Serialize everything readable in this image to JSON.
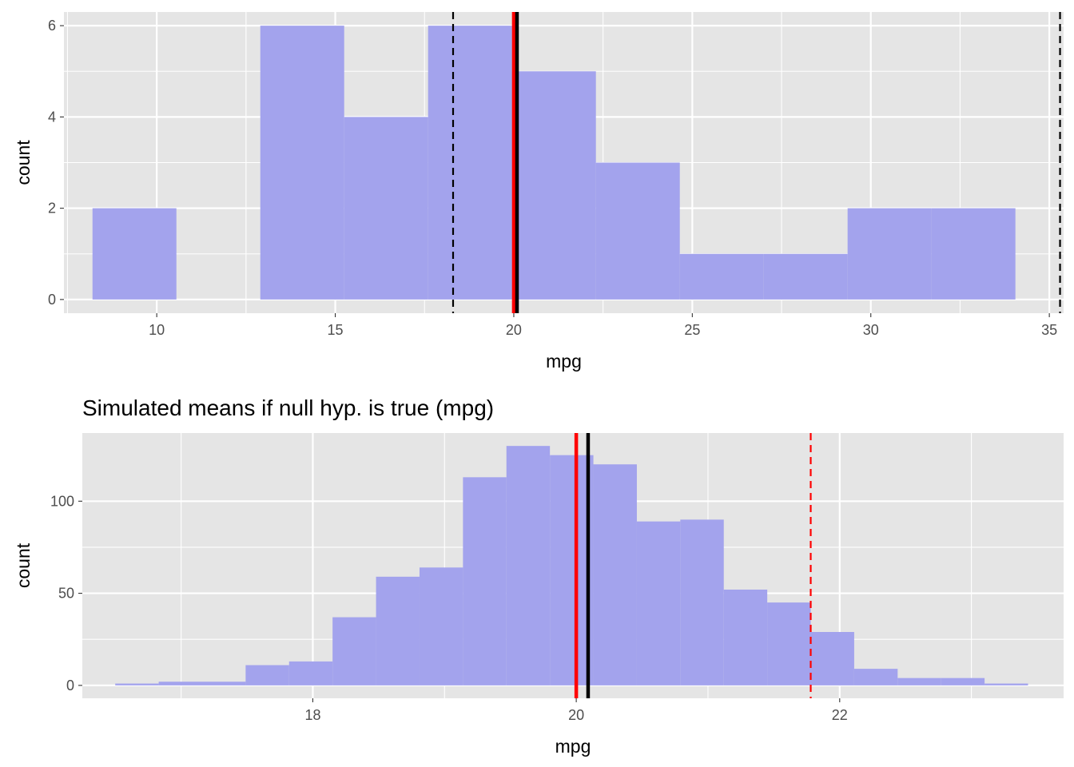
{
  "chart_data": [
    {
      "type": "bar",
      "title": "",
      "xlabel": "mpg",
      "ylabel": "count",
      "xlim": [
        7.4,
        35.4
      ],
      "ylim": [
        -0.3,
        6.3
      ],
      "x_ticks": [
        10,
        15,
        20,
        25,
        30,
        35
      ],
      "y_ticks": [
        0,
        2,
        4,
        6
      ],
      "x_tick_labels": [
        "10",
        "15",
        "20",
        "25",
        "30",
        "35"
      ],
      "y_tick_labels": [
        "0",
        "2",
        "4",
        "6"
      ],
      "grid": true,
      "bins": [
        {
          "x0": 8.2,
          "x1": 10.55,
          "count": 2
        },
        {
          "x0": 10.55,
          "x1": 12.9,
          "count": 0
        },
        {
          "x0": 12.9,
          "x1": 15.25,
          "count": 6
        },
        {
          "x0": 15.25,
          "x1": 17.6,
          "count": 4
        },
        {
          "x0": 17.6,
          "x1": 19.95,
          "count": 6
        },
        {
          "x0": 19.95,
          "x1": 22.3,
          "count": 5
        },
        {
          "x0": 22.3,
          "x1": 24.65,
          "count": 3
        },
        {
          "x0": 24.65,
          "x1": 27.0,
          "count": 1
        },
        {
          "x0": 27.0,
          "x1": 29.35,
          "count": 1
        },
        {
          "x0": 29.35,
          "x1": 31.7,
          "count": 2
        },
        {
          "x0": 31.7,
          "x1": 34.05,
          "count": 2
        }
      ],
      "vlines": [
        {
          "x": 18.3,
          "color": "#000000",
          "style": "dashed"
        },
        {
          "x": 35.3,
          "color": "#000000",
          "style": "dashed"
        },
        {
          "x": 20.0,
          "color": "#ff0000",
          "style": "solid"
        },
        {
          "x": 20.09,
          "color": "#000000",
          "style": "solid"
        }
      ]
    },
    {
      "type": "bar",
      "title": "Simulated means if null hyp. is true (mpg)",
      "xlabel": "mpg",
      "ylabel": "count",
      "xlim": [
        16.25,
        23.7
      ],
      "ylim": [
        -7,
        137
      ],
      "x_ticks": [
        18,
        20,
        22
      ],
      "y_ticks": [
        0,
        50,
        100
      ],
      "x_tick_labels": [
        "18",
        "20",
        "22"
      ],
      "y_tick_labels": [
        "0",
        "50",
        "100"
      ],
      "grid": true,
      "bins": [
        {
          "x0": 16.5,
          "x1": 16.83,
          "count": 1
        },
        {
          "x0": 16.83,
          "x1": 17.16,
          "count": 2
        },
        {
          "x0": 17.16,
          "x1": 17.49,
          "count": 2
        },
        {
          "x0": 17.49,
          "x1": 17.82,
          "count": 11
        },
        {
          "x0": 17.82,
          "x1": 18.15,
          "count": 13
        },
        {
          "x0": 18.15,
          "x1": 18.48,
          "count": 37
        },
        {
          "x0": 18.48,
          "x1": 18.81,
          "count": 59
        },
        {
          "x0": 18.81,
          "x1": 19.14,
          "count": 64
        },
        {
          "x0": 19.14,
          "x1": 19.47,
          "count": 113
        },
        {
          "x0": 19.47,
          "x1": 19.8,
          "count": 130
        },
        {
          "x0": 19.8,
          "x1": 20.13,
          "count": 125
        },
        {
          "x0": 20.13,
          "x1": 20.46,
          "count": 120
        },
        {
          "x0": 20.46,
          "x1": 20.79,
          "count": 89
        },
        {
          "x0": 20.79,
          "x1": 21.12,
          "count": 90
        },
        {
          "x0": 21.12,
          "x1": 21.45,
          "count": 52
        },
        {
          "x0": 21.45,
          "x1": 21.78,
          "count": 45
        },
        {
          "x0": 21.78,
          "x1": 22.11,
          "count": 29
        },
        {
          "x0": 22.11,
          "x1": 22.44,
          "count": 9
        },
        {
          "x0": 22.44,
          "x1": 22.77,
          "count": 4
        },
        {
          "x0": 22.77,
          "x1": 23.1,
          "count": 4
        },
        {
          "x0": 23.1,
          "x1": 23.43,
          "count": 1
        }
      ],
      "vlines": [
        {
          "x": 21.78,
          "color": "#ff0000",
          "style": "dashed"
        },
        {
          "x": 20.0,
          "color": "#ff0000",
          "style": "solid"
        },
        {
          "x": 20.09,
          "color": "#000000",
          "style": "solid"
        }
      ]
    }
  ],
  "colors": {
    "panel_bg": "#e5e5e5",
    "grid": "#ffffff",
    "bar_fill": "#a1a1ed",
    "text": "#4d4d4d",
    "axis_title": "#000000"
  }
}
